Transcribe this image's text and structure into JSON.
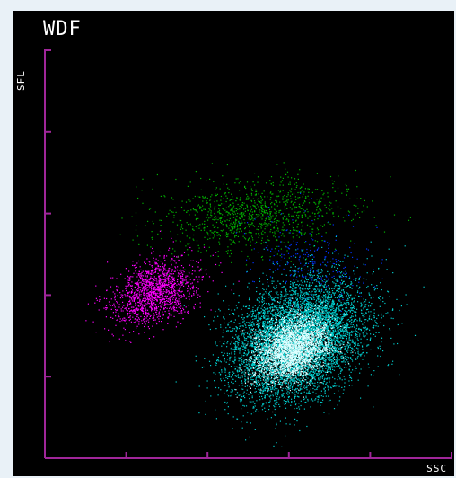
{
  "chart_data": {
    "type": "scatter",
    "title": "WDF",
    "xlabel": "SSC",
    "ylabel": "SFL",
    "grid": false,
    "legend": "none",
    "colors": {
      "background": "#000000",
      "axis": "#a0269a",
      "text": "#ffffff"
    },
    "series": [
      {
        "color": "#ff00ff",
        "shape": "ellipse",
        "count": 1400,
        "center": [
          135,
          205
        ],
        "spread": [
          18,
          28
        ],
        "angle": -62,
        "seed": 11
      },
      {
        "color": "#00b300",
        "shape": "ellipse",
        "count": 1100,
        "center": [
          255,
          300
        ],
        "spread": [
          22,
          58
        ],
        "angle": -84,
        "seed": 23
      },
      {
        "color": "#0033ff",
        "shape": "ellipse",
        "count": 260,
        "center": [
          330,
          240
        ],
        "spread": [
          38,
          24
        ],
        "angle": -20,
        "seed": 37
      },
      {
        "color": "#00cccc",
        "shape": "ellipse",
        "count": 7000,
        "center": [
          310,
          145
        ],
        "spread": [
          32,
          44
        ],
        "angle": -55,
        "seed": 5
      },
      {
        "color": "#ddffff",
        "shape": "ellipse",
        "count": 2600,
        "center": [
          305,
          135
        ],
        "spread": [
          17,
          24
        ],
        "angle": -55,
        "seed": 8
      }
    ],
    "xlim": [
      0,
      500
    ],
    "ylim": [
      0,
      500
    ],
    "xticks": [
      0,
      100,
      200,
      300,
      400
    ],
    "yticks": [
      100,
      200,
      300,
      400,
      500
    ]
  }
}
